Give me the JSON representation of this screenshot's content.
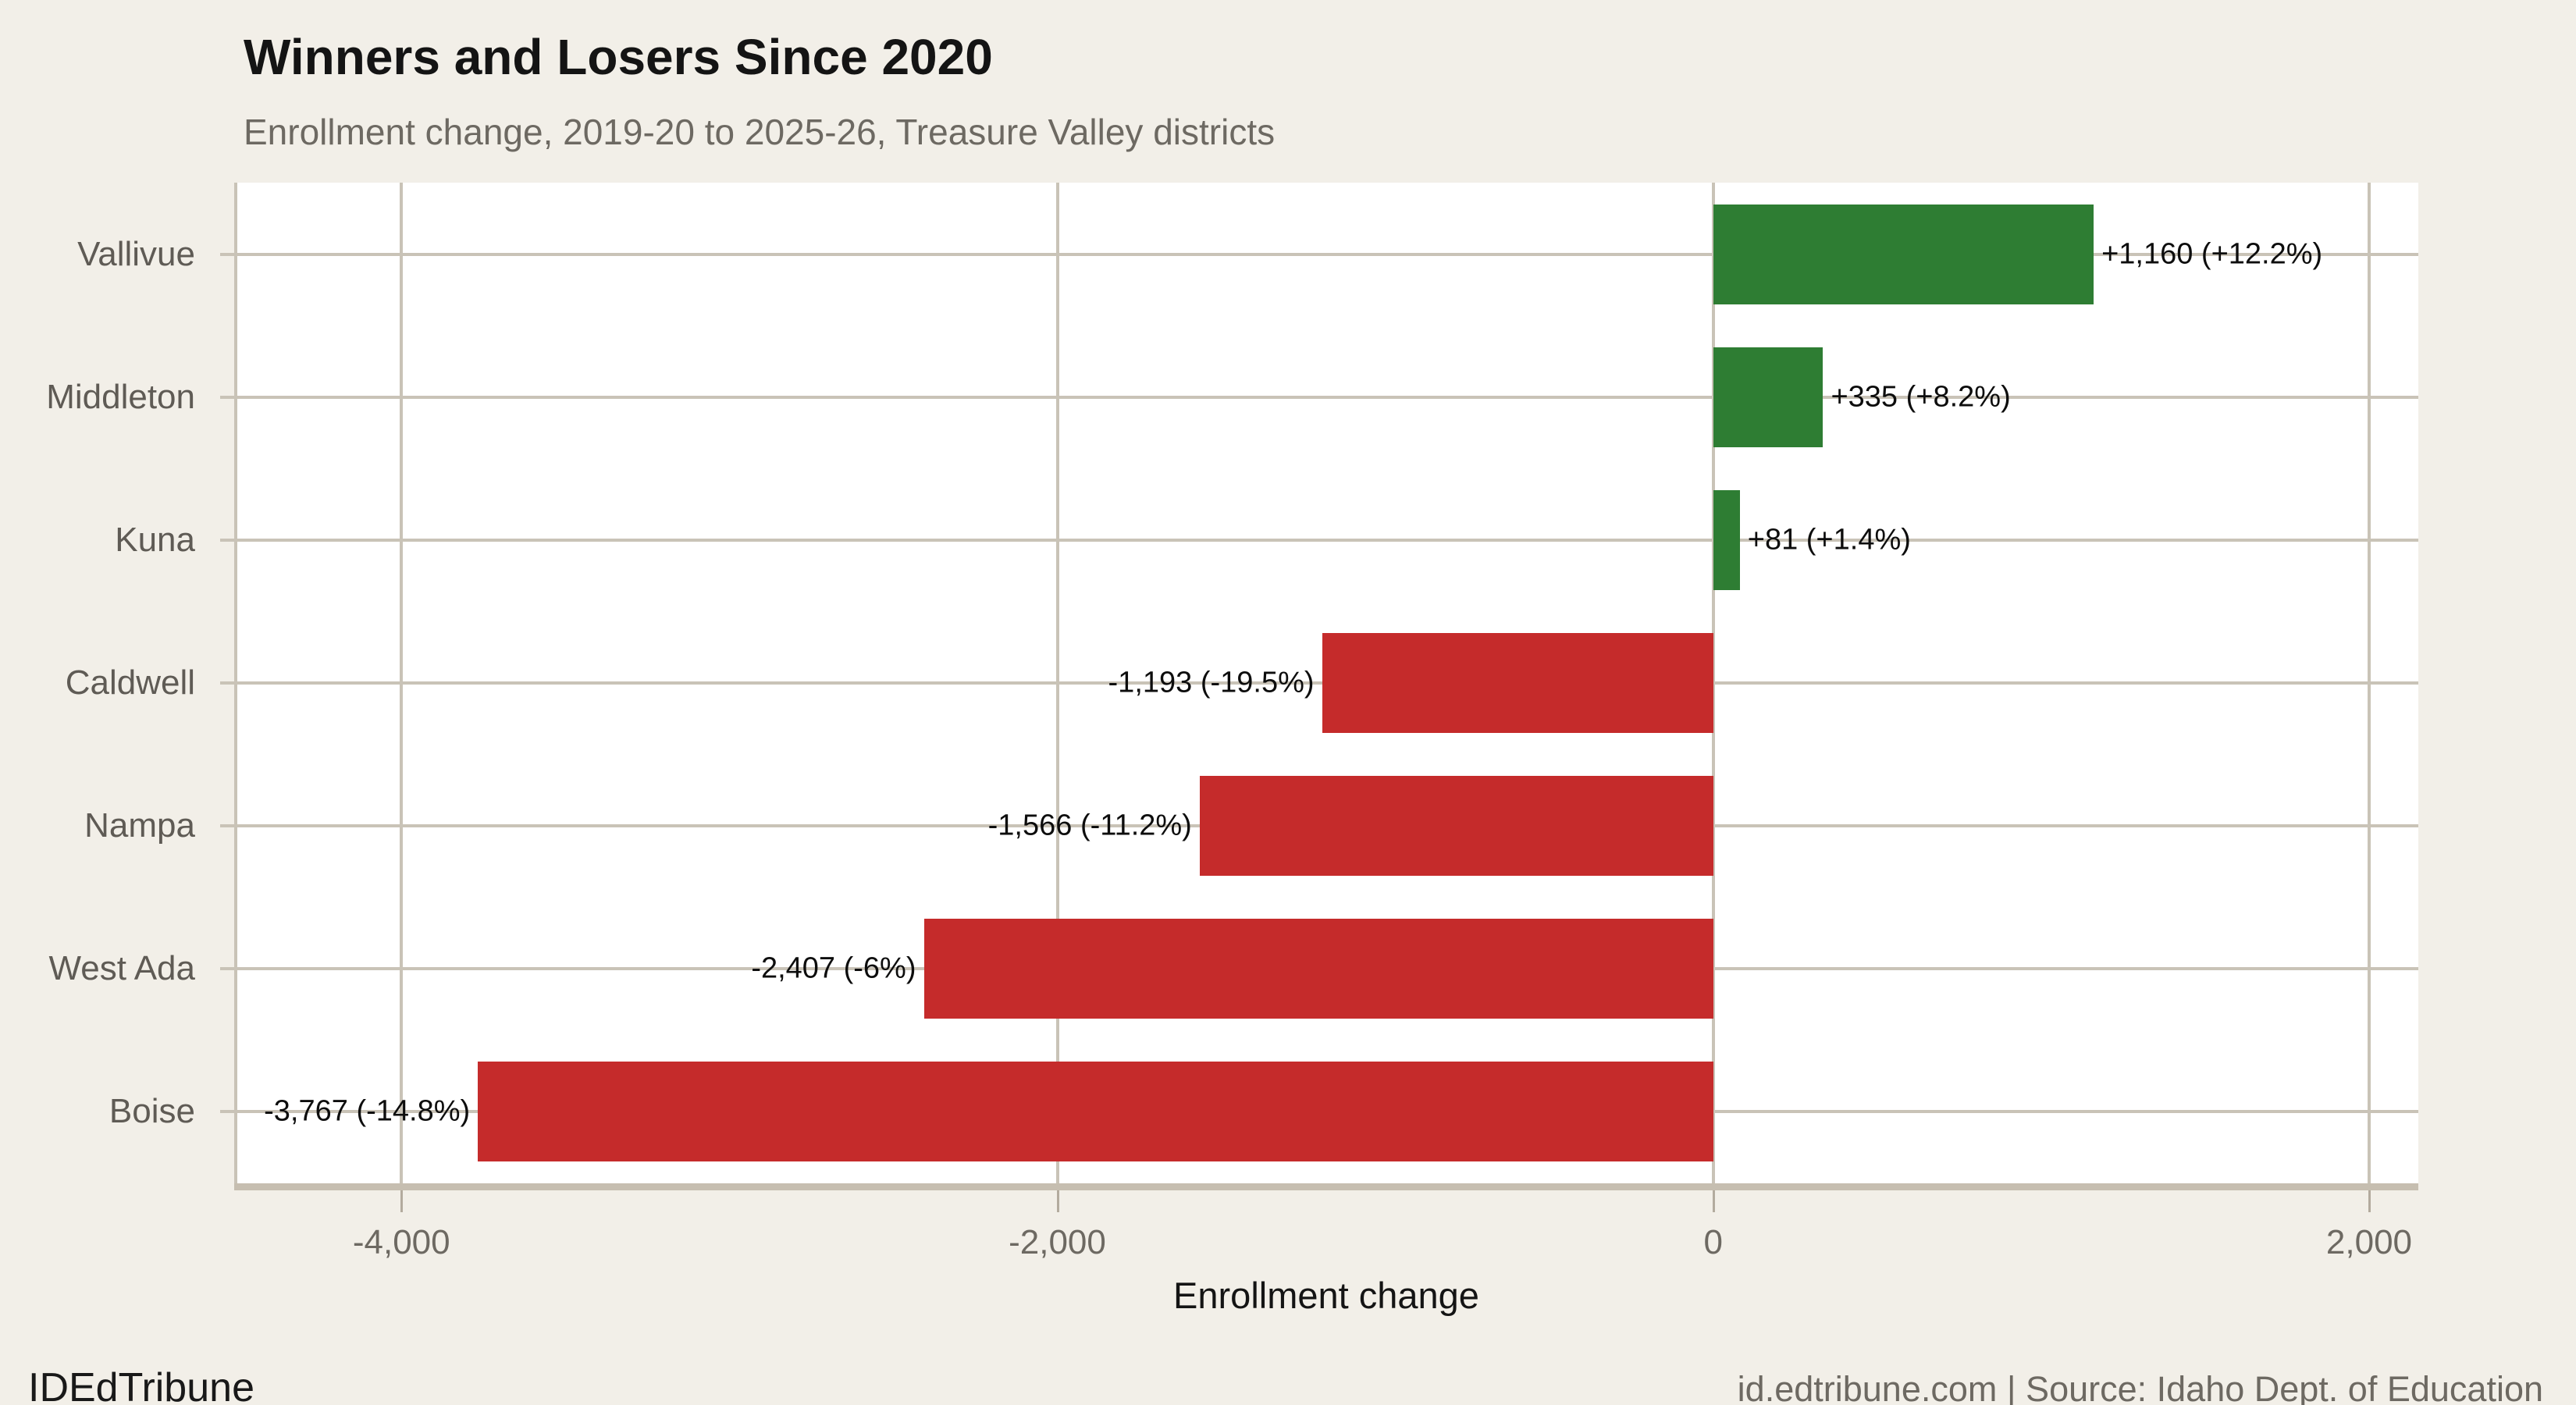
{
  "header": {
    "title": "Winners and Losers Since 2020",
    "subtitle": "Enrollment change, 2019-20 to 2025-26, Treasure Valley districts"
  },
  "chart_data": {
    "type": "bar",
    "orientation": "horizontal",
    "title": "Winners and Losers Since 2020",
    "subtitle": "Enrollment change, 2019-20 to 2025-26, Treasure Valley districts",
    "categories": [
      "Vallivue",
      "Middleton",
      "Kuna",
      "Caldwell",
      "Nampa",
      "West Ada",
      "Boise"
    ],
    "values": [
      1160,
      335,
      81,
      -1193,
      -1566,
      -2407,
      -3767
    ],
    "percent_changes": [
      12.2,
      8.2,
      1.4,
      -19.5,
      -11.2,
      -6,
      -14.8
    ],
    "bar_labels": [
      "+1,160 (+12.2%)",
      "+335 (+8.2%)",
      "+81 (+1.4%)",
      "-1,193 (-19.5%)",
      "-1,566 (-11.2%)",
      "-2,407 (-6%)",
      "-3,767 (-14.8%)"
    ],
    "xlabel": "Enrollment change",
    "x_ticks": [
      -4000,
      -2000,
      0,
      2000
    ],
    "x_tick_labels": [
      "-4,000",
      "-2,000",
      "0",
      "2,000"
    ],
    "xlim": [
      -4510,
      2150
    ],
    "grid": true,
    "legend": "none",
    "positive_color": "#2e7d33",
    "negative_color": "#c52b2b"
  },
  "footer": {
    "left": "IDEdTribune",
    "right": "id.edtribune.com | Source: Idaho Dept. of Education"
  }
}
